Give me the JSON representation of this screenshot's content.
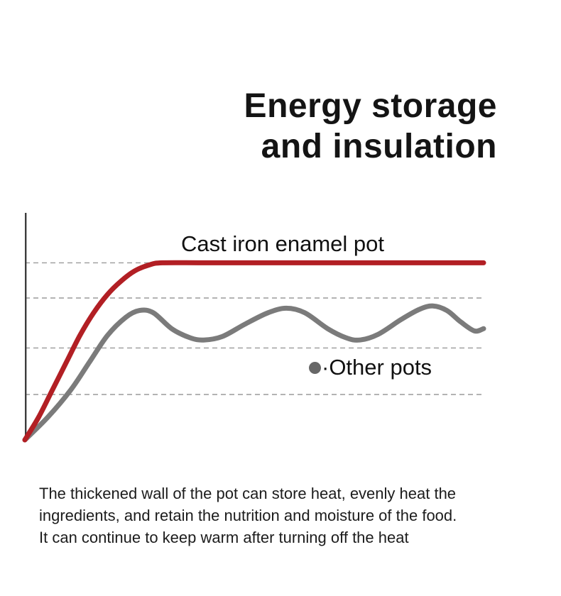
{
  "title": {
    "line1": "Energy storage",
    "line2": "and insulation"
  },
  "labels": {
    "cast_iron": "Cast iron enamel pot",
    "other_pots": "·Other pots"
  },
  "description": {
    "lines": [
      "The thickened wall of the pot can store heat, evenly heat the",
      "ingredients, and retain the nutrition and moisture of the food.",
      "It can continue to keep warm after turning off the heat"
    ]
  },
  "colors": {
    "cast_iron": "#b21f24",
    "other_pots": "#7b7b7b",
    "grid": "#9a9a9a",
    "axis": "#3d3d3d",
    "text": "#1a1a1a"
  },
  "chart_data": {
    "type": "line",
    "title": "Energy storage and insulation",
    "xlabel": "",
    "ylabel": "",
    "x_range": [
      0,
      100
    ],
    "y_range": [
      0,
      100
    ],
    "grid": "horizontal dashed lines, no tick labels",
    "gridlines_y": [
      20,
      40.5,
      62.5,
      78
    ],
    "legend_position": "inline labels on chart",
    "series": [
      {
        "name": "Cast iron enamel pot",
        "color": "#b21f24",
        "shape": "steep rise then flat plateau at top gridline",
        "x": [
          0,
          3,
          6,
          9,
          12,
          15,
          18,
          21,
          24,
          27,
          30,
          40,
          60,
          80,
          100
        ],
        "y": [
          0,
          10,
          22,
          34,
          46,
          56,
          64,
          70,
          74.5,
          77,
          78,
          78,
          78,
          78,
          78
        ]
      },
      {
        "name": "Other pots",
        "color": "#7b7b7b",
        "shape": "rise then oscillating wave between gridlines 2 and 3",
        "x": [
          0,
          5,
          10,
          14,
          18,
          22,
          25,
          28,
          32,
          36,
          39,
          43,
          48,
          53,
          57,
          61,
          66,
          70,
          73,
          77,
          82,
          86,
          89,
          92,
          95,
          98,
          100
        ],
        "y": [
          0,
          10,
          22,
          34,
          46,
          54,
          57,
          56,
          49,
          45,
          44,
          45.5,
          51,
          56,
          58,
          56,
          49,
          45,
          44,
          46.5,
          53,
          57.5,
          59,
          57,
          52,
          48,
          49
        ]
      }
    ]
  }
}
